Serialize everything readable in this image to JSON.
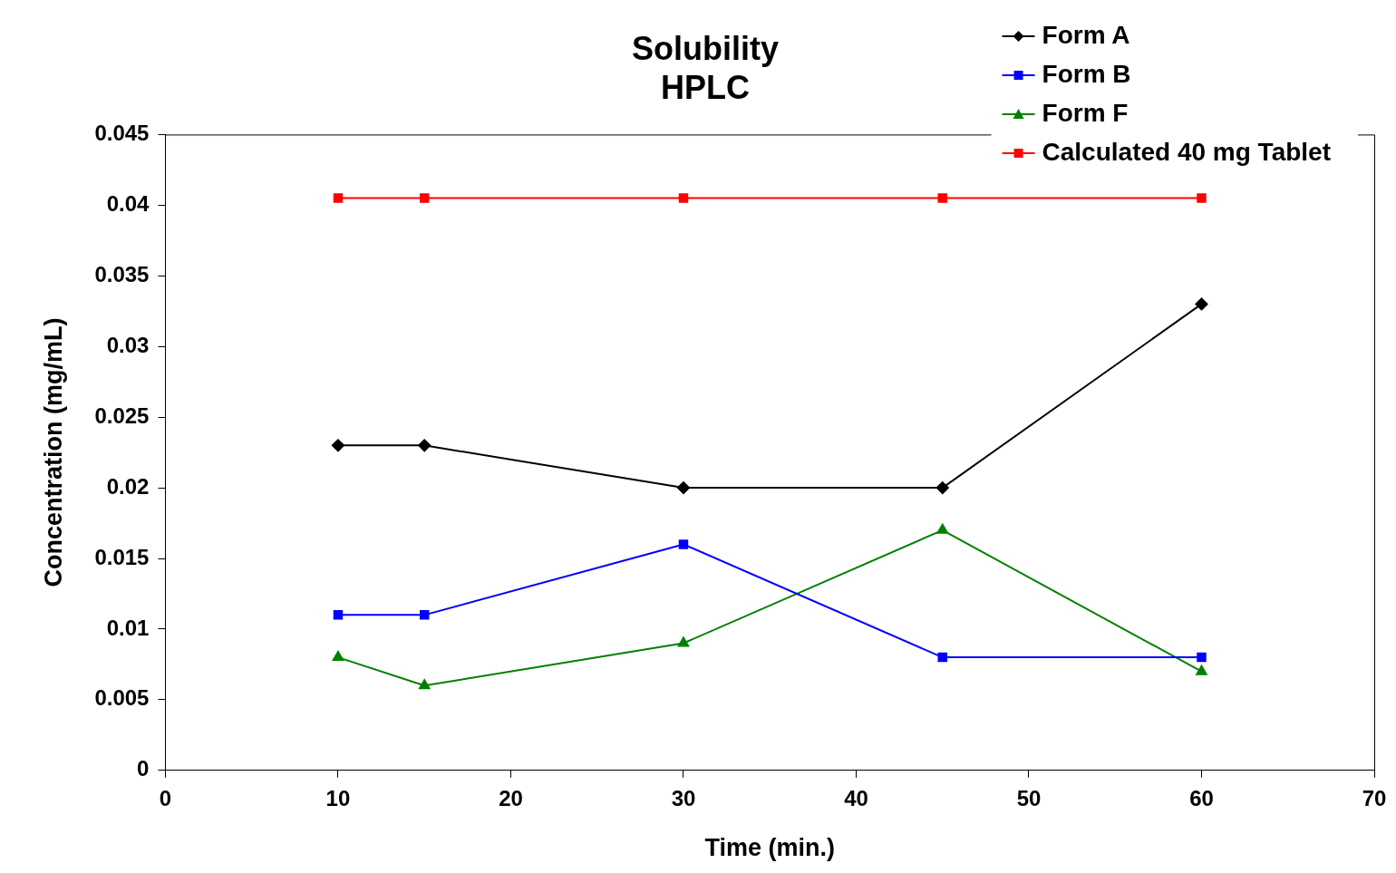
{
  "chart_data": {
    "type": "line",
    "title": "Solubility\nHPLC",
    "xlabel": "Time (min.)",
    "ylabel": "Concentration (mg/mL)",
    "x": [
      10,
      15,
      30,
      45,
      60
    ],
    "series": [
      {
        "name": "Form A",
        "color": "#000000",
        "marker": "diamond",
        "values": [
          0.023,
          0.023,
          0.02,
          0.02,
          0.033
        ]
      },
      {
        "name": "Form B",
        "color": "#0000ff",
        "marker": "square",
        "values": [
          0.011,
          0.011,
          0.016,
          0.008,
          0.008
        ]
      },
      {
        "name": "Form F",
        "color": "#008000",
        "marker": "triangle",
        "values": [
          0.008,
          0.006,
          0.009,
          0.017,
          0.007
        ]
      },
      {
        "name": "Calculated 40 mg Tablet",
        "color": "#ff0000",
        "marker": "square",
        "values": [
          0.0405,
          0.0405,
          0.0405,
          0.0405,
          0.0405
        ]
      }
    ],
    "xlim": [
      0,
      70
    ],
    "xticks": [
      0,
      10,
      20,
      30,
      40,
      50,
      60,
      70
    ],
    "ylim": [
      0,
      0.045
    ],
    "yticks": [
      0,
      0.005,
      0.01,
      0.015,
      0.02,
      0.025,
      0.03,
      0.035,
      0.04,
      0.045
    ],
    "grid": false,
    "legend": "top right",
    "line_style": "solid"
  }
}
